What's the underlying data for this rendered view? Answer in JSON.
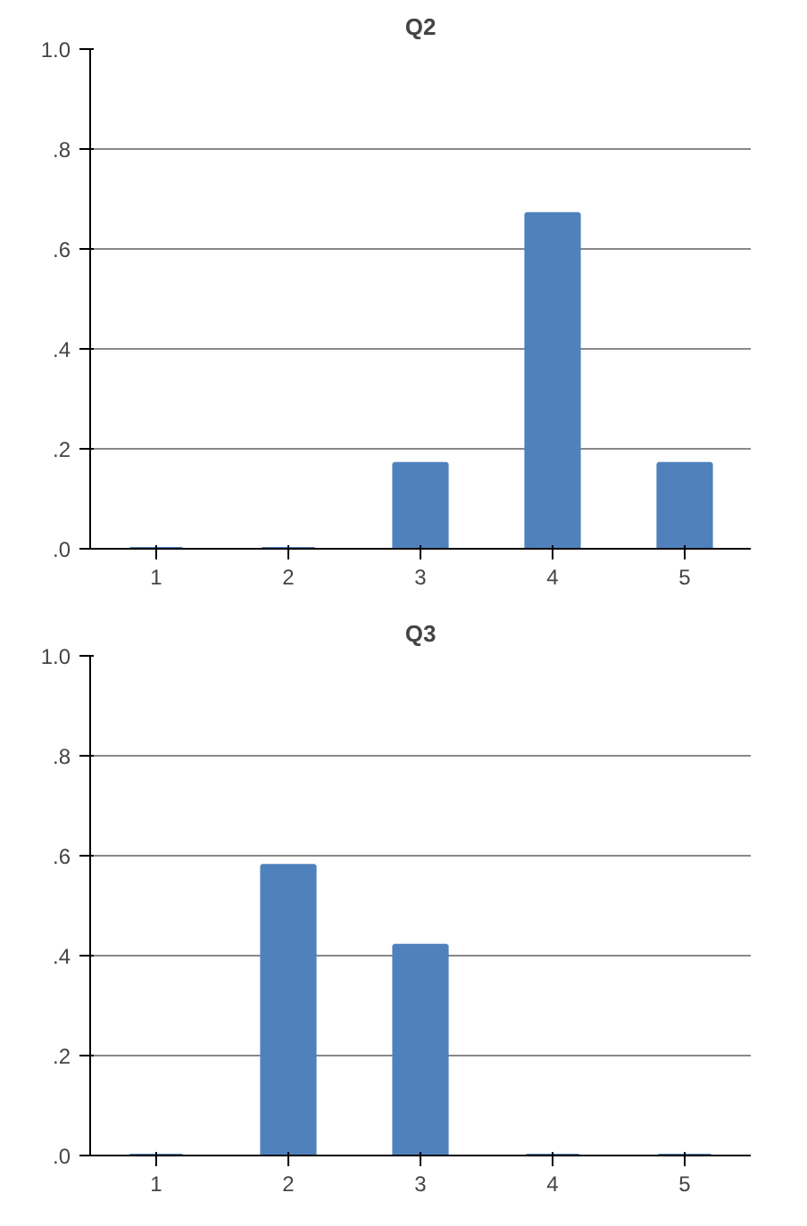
{
  "chart_data": [
    {
      "type": "bar",
      "title": "Q2",
      "categories": [
        "1",
        "2",
        "3",
        "4",
        "5"
      ],
      "values": [
        0,
        0,
        0.17,
        0.67,
        0.17
      ],
      "color": "#4f81bd",
      "ylim": [
        0,
        1
      ],
      "yticks": [
        {
          "value": 0,
          "label": ".0"
        },
        {
          "value": 0.2,
          "label": ".2"
        },
        {
          "value": 0.4,
          "label": ".4"
        },
        {
          "value": 0.6,
          "label": ".6"
        },
        {
          "value": 0.8,
          "label": ".8"
        },
        {
          "value": 1,
          "label": "1.0"
        }
      ],
      "grid": "y"
    },
    {
      "type": "bar",
      "title": "Q3",
      "categories": [
        "1",
        "2",
        "3",
        "4",
        "5"
      ],
      "values": [
        0,
        0.58,
        0.42,
        0,
        0
      ],
      "color": "#4f81bd",
      "ylim": [
        0,
        1
      ],
      "yticks": [
        {
          "value": 0,
          "label": ".0"
        },
        {
          "value": 0.2,
          "label": ".2"
        },
        {
          "value": 0.4,
          "label": ".4"
        },
        {
          "value": 0.6,
          "label": ".6"
        },
        {
          "value": 0.8,
          "label": ".8"
        },
        {
          "value": 1,
          "label": "1.0"
        }
      ],
      "grid": "y"
    }
  ]
}
